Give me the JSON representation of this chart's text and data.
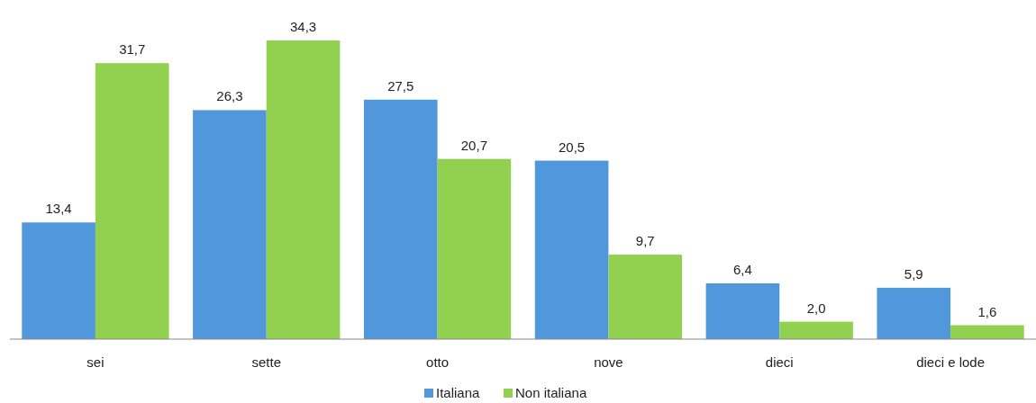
{
  "chart_data": {
    "type": "bar",
    "categories": [
      "sei",
      "sette",
      "otto",
      "nove",
      "dieci",
      "dieci e lode"
    ],
    "series": [
      {
        "name": "Italiana",
        "color": "#5097db",
        "values": [
          13.4,
          26.3,
          27.5,
          20.5,
          6.4,
          5.9
        ],
        "value_labels": [
          "13,4",
          "26,3",
          "27,5",
          "20,5",
          "6,4",
          "5,9"
        ]
      },
      {
        "name": "Non italiana",
        "color": "#92d050",
        "values": [
          31.7,
          34.3,
          20.7,
          9.7,
          2.0,
          1.6
        ],
        "value_labels": [
          "31,7",
          "34,3",
          "20,7",
          "9,7",
          "2,0",
          "1,6"
        ]
      }
    ],
    "legend": "bottom"
  }
}
